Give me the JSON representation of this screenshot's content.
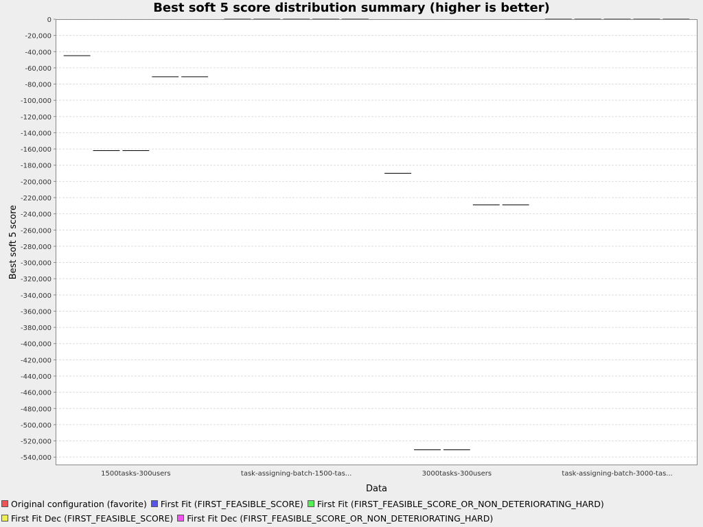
{
  "chart_data": {
    "type": "boxplot",
    "title": "Best soft 5 score distribution summary (higher is better)",
    "xlabel": "Data",
    "ylabel": "Best soft 5 score",
    "ylim": [
      -550000,
      0
    ],
    "ytick_step": 20000,
    "grid": true,
    "legend_position": "bottom",
    "categories": [
      "1500tasks-300users",
      "task-assigning-batch-1500-tas...",
      "3000tasks-300users",
      "task-assigning-batch-3000-tas..."
    ],
    "series": [
      {
        "name": "Original configuration (favorite)",
        "color": "#ee5555",
        "values": [
          -45000,
          0,
          -190000,
          0
        ]
      },
      {
        "name": "First Fit (FIRST_FEASIBLE_SCORE)",
        "color": "#5555ee",
        "values": [
          -162000,
          0,
          -531000,
          0
        ]
      },
      {
        "name": "First Fit (FIRST_FEASIBLE_SCORE_OR_NON_DETERIORATING_HARD)",
        "color": "#55ee55",
        "values": [
          -162000,
          0,
          -531000,
          0
        ]
      },
      {
        "name": "First Fit Dec (FIRST_FEASIBLE_SCORE)",
        "color": "#eeee55",
        "values": [
          -71000,
          0,
          -229000,
          0
        ]
      },
      {
        "name": "First Fit Dec (FIRST_FEASIBLE_SCORE_OR_NON_DETERIORATING_HARD)",
        "color": "#ee55ee",
        "values": [
          -71000,
          0,
          -229000,
          0
        ]
      }
    ]
  }
}
